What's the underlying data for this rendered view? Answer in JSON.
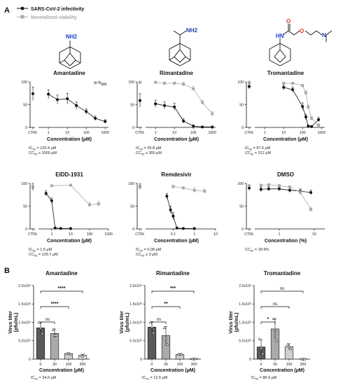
{
  "figure": {
    "panel_a_label": "A",
    "panel_b_label": "B",
    "legend": {
      "infectivity": "SARS-CoV-2 infectivity",
      "viability": "Normalized viability"
    },
    "colors": {
      "infectivity": "#111111",
      "viability": "#a9a9a9",
      "nitrogen": "#1f3fbf",
      "oxygen": "#e03a1e"
    },
    "structures": [
      {
        "name": "amantadine-structure",
        "labels": [
          "NH2"
        ]
      },
      {
        "name": "rimantadine-structure",
        "labels": [
          "NH2"
        ]
      },
      {
        "name": "tromantadine-structure",
        "labels": [
          "HN",
          "O",
          "O",
          "N"
        ]
      }
    ]
  },
  "chart_data": [
    {
      "type": "line",
      "panel": "A",
      "title": "Amantadine",
      "xlabel": "Concentration (µM)",
      "xscale": "log",
      "xlim": [
        0.3,
        1500
      ],
      "xticks": [
        "CTRL",
        "1",
        "10",
        "100",
        "1000"
      ],
      "ylim": [
        0,
        100
      ],
      "yticks": [
        "0",
        "50",
        "100"
      ],
      "series": [
        {
          "name": "SARS-CoV-2 infectivity",
          "x": [
            "CTRL",
            1,
            3,
            10,
            30,
            100,
            300,
            1000
          ],
          "y": [
            74,
            73,
            61,
            63,
            48,
            35,
            20,
            13
          ],
          "err": [
            15,
            10,
            10,
            12,
            8,
            6,
            5,
            4
          ]
        },
        {
          "name": "Normalized viability",
          "x": [
            300,
            500,
            700,
            1000
          ],
          "y": [
            98,
            99,
            95,
            95
          ],
          "err": [
            2,
            2,
            3,
            3
          ]
        }
      ],
      "footnote": [
        "IC50 = 120.4 µM",
        "CC50 ≥ 1000 µM"
      ]
    },
    {
      "type": "line",
      "panel": "A",
      "title": "Rimantadine",
      "xlabel": "Concentration (µM)",
      "xscale": "log",
      "xlim": [
        0.3,
        1500
      ],
      "xticks": [
        "CTRL",
        "1",
        "10",
        "100",
        "1000"
      ],
      "ylim": [
        0,
        100
      ],
      "yticks": [
        "0",
        "50",
        "100"
      ],
      "series": [
        {
          "name": "SARS-CoV-2 infectivity",
          "x": [
            "CTRL",
            1,
            3,
            10,
            30,
            100,
            300,
            1000
          ],
          "y": [
            59,
            52,
            48,
            45,
            14,
            3,
            1,
            1
          ],
          "err": [
            15,
            8,
            8,
            8,
            5,
            2,
            1,
            1
          ]
        },
        {
          "name": "Normalized viability",
          "x": [
            "CTRL",
            1,
            3,
            10,
            30,
            100,
            300,
            1000
          ],
          "y": [
            99,
            99,
            97,
            97,
            95,
            85,
            55,
            30
          ],
          "err": [
            2,
            2,
            3,
            3,
            4,
            5,
            5,
            5
          ]
        }
      ],
      "footnote": [
        "IC50 = 29.8 µM",
        "CC50 ≥ 300 µM"
      ]
    },
    {
      "type": "line",
      "panel": "A",
      "title": "Tromantadine",
      "xlabel": "Concentration (µM)",
      "xscale": "log",
      "xlim": [
        0.3,
        1500
      ],
      "xticks": [
        "CTRL",
        "1",
        "10",
        "100",
        "1000"
      ],
      "ylim": [
        0,
        100
      ],
      "yticks": [
        "0",
        "50",
        "100"
      ],
      "series": [
        {
          "name": "SARS-CoV-2 infectivity",
          "x": [
            "CTRL",
            10,
            30,
            100,
            150,
            200,
            300,
            700
          ],
          "y": [
            90,
            88,
            83,
            46,
            23,
            3,
            2,
            17
          ],
          "err": [
            6,
            6,
            6,
            8,
            6,
            2,
            2,
            5
          ]
        },
        {
          "name": "Normalized viability",
          "x": [
            "CTRL",
            10,
            30,
            100,
            150,
            200,
            300,
            700
          ],
          "y": [
            99,
            97,
            97,
            92,
            76,
            45,
            20,
            5
          ],
          "err": [
            2,
            2,
            2,
            3,
            5,
            4,
            4,
            3
          ]
        }
      ],
      "footnote": [
        "IC50 = 97.6 µM",
        "CC50 = 312 µM"
      ]
    },
    {
      "type": "line",
      "panel": "A",
      "title": "EIDD-1931",
      "xlabel": "Concentration (µM)",
      "xscale": "log",
      "xlim": [
        0.2,
        1000
      ],
      "xticks": [
        "CTRL",
        "1",
        "10",
        "100",
        "1000"
      ],
      "ylim": [
        0,
        100
      ],
      "yticks": [
        "0",
        "50",
        "100"
      ],
      "series": [
        {
          "name": "SARS-CoV-2 infectivity",
          "x": [
            "CTRL",
            0.5,
            1,
            1.5,
            3,
            10
          ],
          "y": [
            92,
            78,
            62,
            2,
            1,
            1
          ],
          "err": [
            8,
            6,
            6,
            1,
            1,
            1
          ]
        },
        {
          "name": "Normalized viability",
          "x": [
            "CTRL",
            1,
            10,
            100,
            300
          ],
          "y": [
            93,
            95,
            96,
            53,
            55
          ],
          "err": [
            2,
            2,
            3,
            5,
            6
          ]
        }
      ],
      "footnote": [
        "IC50 = 1.5 µM",
        "CC50 = 129.7 µM"
      ]
    },
    {
      "type": "line",
      "panel": "A",
      "title": "Remdesivir",
      "xlabel": "Concentration (µM)",
      "xscale": "log",
      "xlim": [
        0.005,
        10
      ],
      "xticks": [
        "CTRL",
        "0.1",
        "1",
        "10"
      ],
      "ylim": [
        0,
        100
      ],
      "yticks": [
        "0",
        "50",
        "100"
      ],
      "series": [
        {
          "name": "SARS-CoV-2 infectivity",
          "x": [
            "CTRL",
            0.05,
            0.075,
            0.1,
            0.15,
            0.3,
            1
          ],
          "y": [
            93,
            72,
            42,
            28,
            2,
            1,
            1
          ],
          "err": [
            6,
            6,
            8,
            8,
            1,
            1,
            1
          ]
        },
        {
          "name": "Normalized viability",
          "x": [
            "CTRL",
            0.1,
            0.3,
            1,
            3
          ],
          "y": [
            92,
            93,
            90,
            85,
            83
          ],
          "err": [
            2,
            3,
            3,
            6,
            5
          ]
        }
      ],
      "footnote": [
        "IC50 = 0.08 µM",
        "CC50 ≥ 3 µM"
      ]
    },
    {
      "type": "line",
      "panel": "A",
      "title": "DMSO",
      "xlabel": "Concentration (%)",
      "xscale": "log",
      "xlim": [
        0.2,
        20
      ],
      "xticks": [
        "CTRL",
        "1",
        "10"
      ],
      "ylim": [
        0,
        100
      ],
      "yticks": [
        "0",
        "50",
        "100"
      ],
      "series": [
        {
          "name": "SARS-CoV-2 infectivity",
          "x": [
            "CTRL",
            0.3,
            0.5,
            1,
            2,
            4,
            8
          ],
          "y": [
            90,
            87,
            88,
            88,
            85,
            83,
            80
          ],
          "err": [
            6,
            5,
            5,
            4,
            5,
            5,
            5
          ]
        },
        {
          "name": "Normalized viability",
          "x": [
            "CTRL",
            0.3,
            0.5,
            1,
            2,
            4,
            8
          ],
          "y": [
            95,
            96,
            97,
            95,
            92,
            80,
            43
          ],
          "err": [
            2,
            2,
            2,
            3,
            3,
            4,
            5
          ]
        }
      ],
      "footnote": [
        "CC50 = 18.9%"
      ]
    },
    {
      "type": "bar",
      "panel": "B",
      "title": "Amantadine",
      "categories": [
        "0",
        "30",
        "100",
        "300"
      ],
      "values": [
        850000,
        700000,
        150000,
        100000
      ],
      "err": [
        150000,
        120000,
        20000,
        30000
      ],
      "points": [
        [
          1000000,
          850000,
          700000
        ],
        [
          800000,
          650000,
          650000
        ],
        [
          150000,
          150000,
          130000
        ],
        [
          100000,
          80000,
          120000
        ]
      ],
      "bar_colors": [
        "#5a5a5a",
        "#aaaaaa",
        "#cfcfcf",
        "#e6e6e6"
      ],
      "ylabel": "Virus titer (pfu/mL)",
      "xlabel": "Concentration (µM)",
      "ylim": [
        0,
        2000000
      ],
      "yticks": [
        "0",
        "5.0x10⁵",
        "1.0x10⁶",
        "1.5x10⁶",
        "2.0x10⁶"
      ],
      "comparisons": [
        {
          "from": "0",
          "to": "30",
          "label": "ns"
        },
        {
          "from": "0",
          "to": "100",
          "label": "****"
        },
        {
          "from": "0",
          "to": "300",
          "label": "****"
        }
      ],
      "footnote": "IC50 = 34.6 µM"
    },
    {
      "type": "bar",
      "panel": "B",
      "title": "Rimantadine",
      "categories": [
        "0",
        "30",
        "100",
        "300"
      ],
      "values": [
        870000,
        640000,
        130000,
        10000
      ],
      "err": [
        150000,
        250000,
        20000,
        5000
      ],
      "points": [
        [
          1000000,
          870000,
          720000
        ],
        [
          850000,
          550000,
          400000
        ],
        [
          130000,
          120000,
          140000
        ],
        [
          10000,
          10000,
          10000
        ]
      ],
      "bar_colors": [
        "#5a5a5a",
        "#aaaaaa",
        "#cfcfcf",
        "#e6e6e6"
      ],
      "ylabel": "Virus titer (pfu/mL)",
      "xlabel": "Concentration (µM)",
      "ylim": [
        0,
        2000000
      ],
      "yticks": [
        "0",
        "5.0x10⁵",
        "1.0x10⁶",
        "1.5x10⁶",
        "2.0x10⁶"
      ],
      "comparisons": [
        {
          "from": "0",
          "to": "30",
          "label": "ns"
        },
        {
          "from": "0",
          "to": "100",
          "label": "**"
        },
        {
          "from": "0",
          "to": "300",
          "label": "***"
        }
      ],
      "footnote": "IC50 = 12.6 µM"
    },
    {
      "type": "bar",
      "panel": "B",
      "title": "Tromantadine",
      "categories": [
        "0",
        "30",
        "100",
        "300"
      ],
      "values": [
        330000,
        820000,
        340000,
        5000
      ],
      "err": [
        200000,
        280000,
        80000,
        3000
      ],
      "points": [
        [
          550000,
          300000,
          150000
        ],
        [
          1100000,
          800000,
          500000
        ],
        [
          400000,
          350000,
          280000
        ],
        [
          5000,
          5000,
          5000
        ]
      ],
      "bar_colors": [
        "#5a5a5a",
        "#aaaaaa",
        "#cfcfcf",
        "#e6e6e6"
      ],
      "ylabel": "Virus titer (pfu/mL)",
      "xlabel": "Concentration (µM)",
      "ylim": [
        0,
        2000000
      ],
      "yticks": [
        "0",
        "5.0x10⁵",
        "1.0x10⁶",
        "1.5x10⁶",
        "2.0x10⁶"
      ],
      "comparisons": [
        {
          "from": "0",
          "to": "30",
          "label": "*"
        },
        {
          "from": "0",
          "to": "100",
          "label": "ns"
        },
        {
          "from": "0",
          "to": "300",
          "label": "ns"
        }
      ],
      "footnote": "IC50 = 88.9 µM"
    }
  ]
}
